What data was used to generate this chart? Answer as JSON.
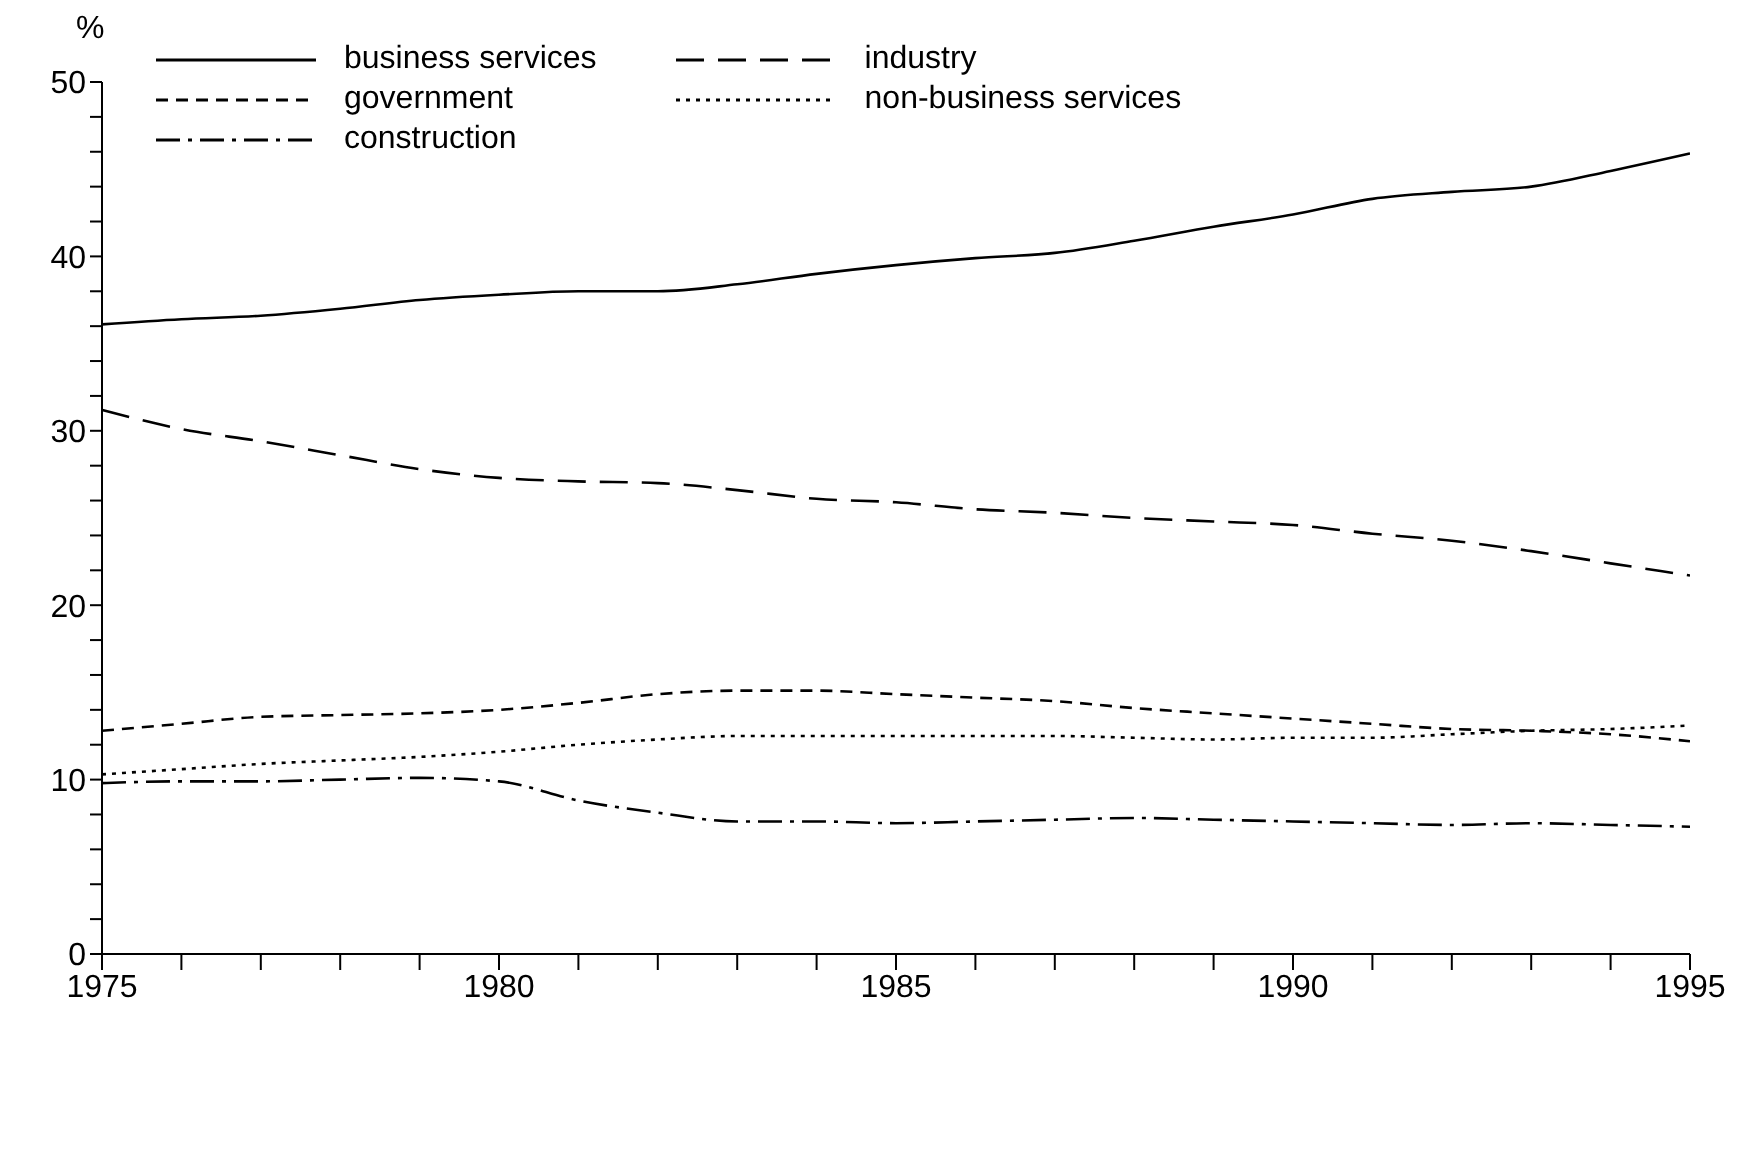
{
  "chart_data": {
    "type": "line",
    "ylabel": "%",
    "x": [
      1975,
      1976,
      1977,
      1978,
      1979,
      1980,
      1981,
      1982,
      1983,
      1984,
      1985,
      1986,
      1987,
      1988,
      1989,
      1990,
      1991,
      1992,
      1993,
      1994,
      1995
    ],
    "series": [
      {
        "name": "business services",
        "color": "#000000",
        "line_style": "solid",
        "values": [
          36.1,
          36.4,
          36.6,
          37.0,
          37.5,
          37.8,
          38.0,
          38.0,
          38.4,
          39.0,
          39.5,
          39.9,
          40.2,
          40.9,
          41.7,
          42.4,
          43.3,
          43.7,
          44.0,
          44.9,
          45.9
        ]
      },
      {
        "name": "industry",
        "color": "#000000",
        "line_style": "long_dashed",
        "values": [
          31.2,
          30.1,
          29.4,
          28.6,
          27.8,
          27.3,
          27.1,
          27.0,
          26.6,
          26.1,
          25.9,
          25.5,
          25.3,
          25.0,
          24.8,
          24.6,
          24.1,
          23.7,
          23.1,
          22.4,
          21.7
        ]
      },
      {
        "name": "government",
        "color": "#000000",
        "line_style": "dashed",
        "values": [
          12.8,
          13.2,
          13.6,
          13.7,
          13.8,
          14.0,
          14.4,
          14.9,
          15.1,
          15.1,
          14.9,
          14.7,
          14.5,
          14.1,
          13.8,
          13.5,
          13.2,
          12.9,
          12.8,
          12.6,
          12.2
        ]
      },
      {
        "name": "non-business services",
        "color": "#000000",
        "line_style": "dotted",
        "values": [
          10.3,
          10.6,
          10.9,
          11.1,
          11.3,
          11.6,
          12.0,
          12.3,
          12.5,
          12.5,
          12.5,
          12.5,
          12.5,
          12.4,
          12.3,
          12.4,
          12.4,
          12.6,
          12.8,
          12.9,
          13.1
        ]
      },
      {
        "name": "construction",
        "color": "#000000",
        "line_style": "dashdot",
        "values": [
          9.8,
          9.9,
          9.9,
          10.0,
          10.1,
          9.9,
          8.8,
          8.1,
          7.6,
          7.6,
          7.5,
          7.6,
          7.7,
          7.8,
          7.7,
          7.6,
          7.5,
          7.4,
          7.5,
          7.4,
          7.3
        ]
      }
    ],
    "xlim": [
      1975,
      1995
    ],
    "xticks": [
      1975,
      {
        "value": 1976,
        "label": null
      },
      {
        "value": 1977,
        "label": null
      },
      {
        "value": 1978,
        "label": null
      },
      {
        "value": 1979,
        "label": null
      },
      1980,
      {
        "value": 1981,
        "label": null
      },
      {
        "value": 1982,
        "label": null
      },
      {
        "value": 1983,
        "label": null
      },
      {
        "value": 1984,
        "label": null
      },
      1985,
      {
        "value": 1986,
        "label": null
      },
      {
        "value": 1987,
        "label": null
      },
      {
        "value": 1988,
        "label": null
      },
      {
        "value": 1989,
        "label": null
      },
      1990,
      {
        "value": 1991,
        "label": null
      },
      {
        "value": 1992,
        "label": null
      },
      {
        "value": 1993,
        "label": null
      },
      {
        "value": 1994,
        "label": null
      },
      1995
    ],
    "ylim": [
      0,
      50
    ],
    "yticks": [
      0,
      {
        "value": 2,
        "label": null
      },
      {
        "value": 4,
        "label": null
      },
      {
        "value": 6,
        "label": null
      },
      {
        "value": 8,
        "label": null
      },
      10,
      {
        "value": 12,
        "label": null
      },
      {
        "value": 14,
        "label": null
      },
      {
        "value": 16,
        "label": null
      },
      {
        "value": 18,
        "label": null
      },
      20,
      {
        "value": 22,
        "label": null
      },
      {
        "value": 24,
        "label": null
      },
      {
        "value": 26,
        "label": null
      },
      {
        "value": 28,
        "label": null
      },
      30,
      {
        "value": 32,
        "label": null
      },
      {
        "value": 34,
        "label": null
      },
      {
        "value": 36,
        "label": null
      },
      {
        "value": 38,
        "label": null
      },
      40,
      {
        "value": 42,
        "label": null
      },
      {
        "value": 44,
        "label": null
      },
      {
        "value": 46,
        "label": null
      },
      {
        "value": 48,
        "label": null
      },
      50
    ],
    "grid": false,
    "legend": "top left",
    "marker": "none"
  }
}
